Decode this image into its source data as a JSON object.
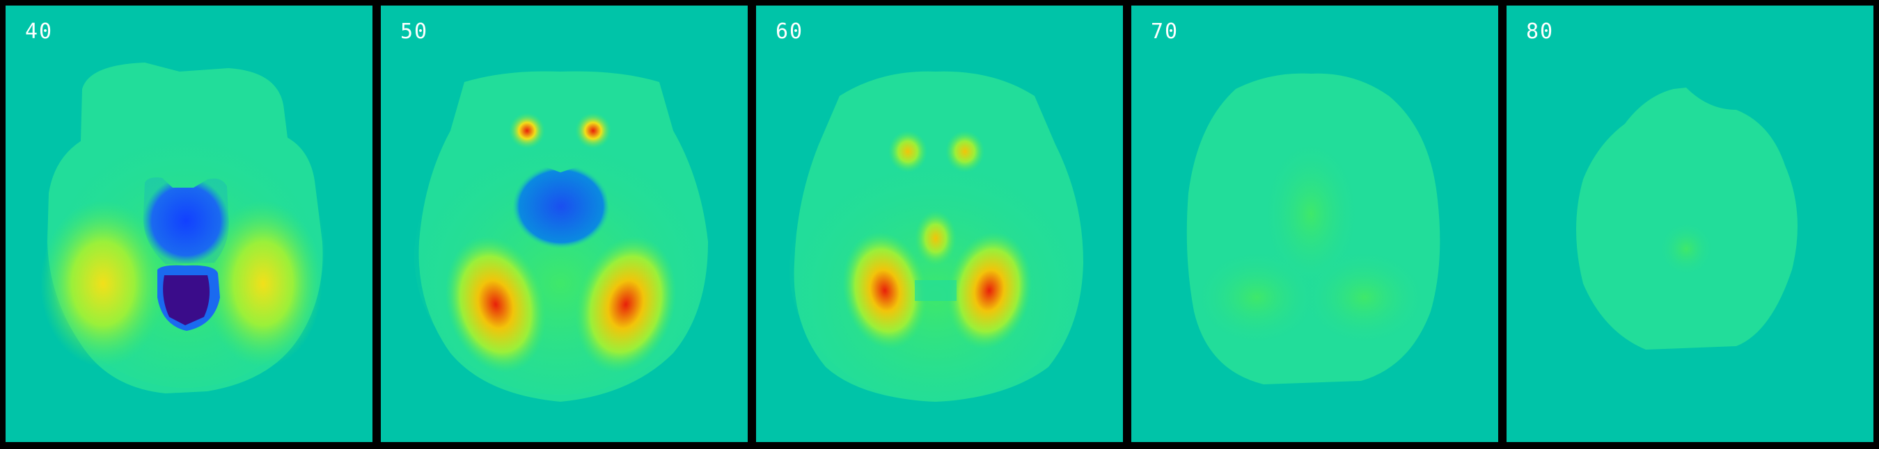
{
  "figure": {
    "panels": [
      {
        "label": "40"
      },
      {
        "label": "50"
      },
      {
        "label": "60"
      },
      {
        "label": "70"
      },
      {
        "label": "80"
      }
    ]
  },
  "colors": {
    "background": "#000000",
    "panel_fill": "#00c4a8",
    "brain_base": "#22dd9a",
    "label_text": "#ffffff",
    "low_dark": "#3a0c8a",
    "low": "#1a4ff0",
    "mid_low": "#0a8ae0",
    "mid": "#3fe86a",
    "mid_high": "#9af03a",
    "high": "#f2c40a",
    "peak": "#e8200a"
  }
}
